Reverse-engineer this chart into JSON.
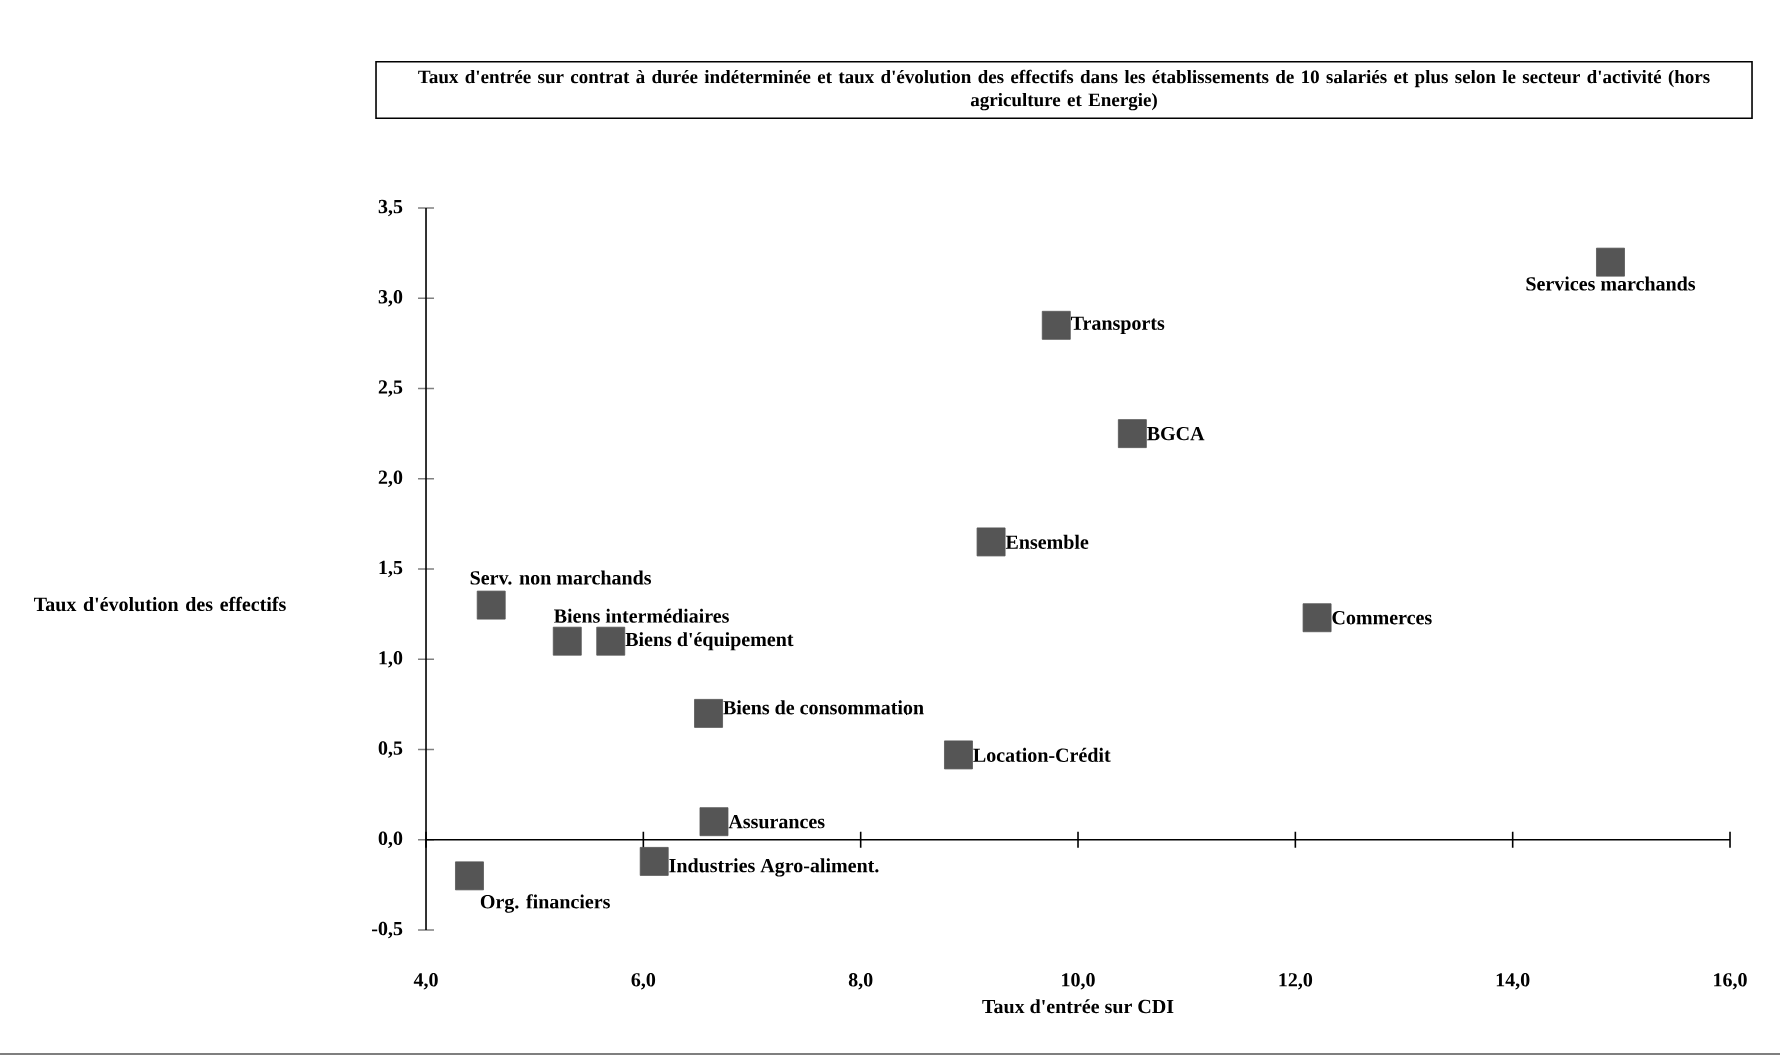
{
  "chart_data": {
    "type": "scatter",
    "title": "Taux d'entrée sur contrat à durée indéterminée et taux d'évolution des effectifs dans les établissements de 10 salariés et plus selon le secteur d'activité (hors agriculture et Energie)",
    "xlabel": "Taux d'entrée sur CDI",
    "ylabel": "Taux d'évolution des effectifs",
    "marker": "square",
    "xlim": [
      4,
      16
    ],
    "ylim": [
      -0.5,
      3.5
    ],
    "xticks": [
      {
        "value": 4,
        "label": "4,0"
      },
      {
        "value": 6,
        "label": "6,0"
      },
      {
        "value": 8,
        "label": "8,0"
      },
      {
        "value": 10,
        "label": "10,0"
      },
      {
        "value": 12,
        "label": "12,0"
      },
      {
        "value": 14,
        "label": "14,0"
      },
      {
        "value": 16,
        "label": "16,0"
      }
    ],
    "yticks": [
      {
        "value": -0.5,
        "label": "-0,5"
      },
      {
        "value": 0,
        "label": "0,0"
      },
      {
        "value": 0.5,
        "label": "0,5"
      },
      {
        "value": 1,
        "label": "1,0"
      },
      {
        "value": 1.5,
        "label": "1,5"
      },
      {
        "value": 2,
        "label": "2,0"
      },
      {
        "value": 2.5,
        "label": "2,5"
      },
      {
        "value": 3,
        "label": "3,0"
      },
      {
        "value": 3.5,
        "label": "3,5"
      }
    ],
    "series": [
      {
        "name": "Services marchands",
        "color": "#555555",
        "x": [
          14.9
        ],
        "values": [
          3.2
        ]
      },
      {
        "name": "Transports",
        "color": "#555555",
        "x": [
          9.8
        ],
        "values": [
          2.85
        ]
      },
      {
        "name": "BGCA",
        "color": "#555555",
        "x": [
          10.5
        ],
        "values": [
          2.25
        ]
      },
      {
        "name": "Ensemble",
        "color": "#555555",
        "x": [
          9.2
        ],
        "values": [
          1.65
        ]
      },
      {
        "name": "Commerces",
        "color": "#555555",
        "x": [
          12.2
        ],
        "values": [
          1.23
        ]
      },
      {
        "name": "Serv. non marchands",
        "color": "#555555",
        "x": [
          4.6
        ],
        "values": [
          1.3
        ]
      },
      {
        "name": "Biens intermédiaires",
        "color": "#555555",
        "x": [
          5.3
        ],
        "values": [
          1.1
        ]
      },
      {
        "name": "Biens d'équipement",
        "color": "#555555",
        "x": [
          5.7
        ],
        "values": [
          1.1
        ]
      },
      {
        "name": "Biens de consommation",
        "color": "#555555",
        "x": [
          6.6
        ],
        "values": [
          0.7
        ]
      },
      {
        "name": "Location-Crédit",
        "color": "#555555",
        "x": [
          8.9
        ],
        "values": [
          0.47
        ]
      },
      {
        "name": "Assurances",
        "color": "#555555",
        "x": [
          6.65
        ],
        "values": [
          0.1
        ]
      },
      {
        "name": "Industries Agro-aliment.",
        "color": "#555555",
        "x": [
          6.1
        ],
        "values": [
          -0.12
        ]
      },
      {
        "name": "Org. financiers",
        "color": "#555555",
        "x": [
          4.4
        ],
        "values": [
          -0.2
        ]
      }
    ]
  }
}
